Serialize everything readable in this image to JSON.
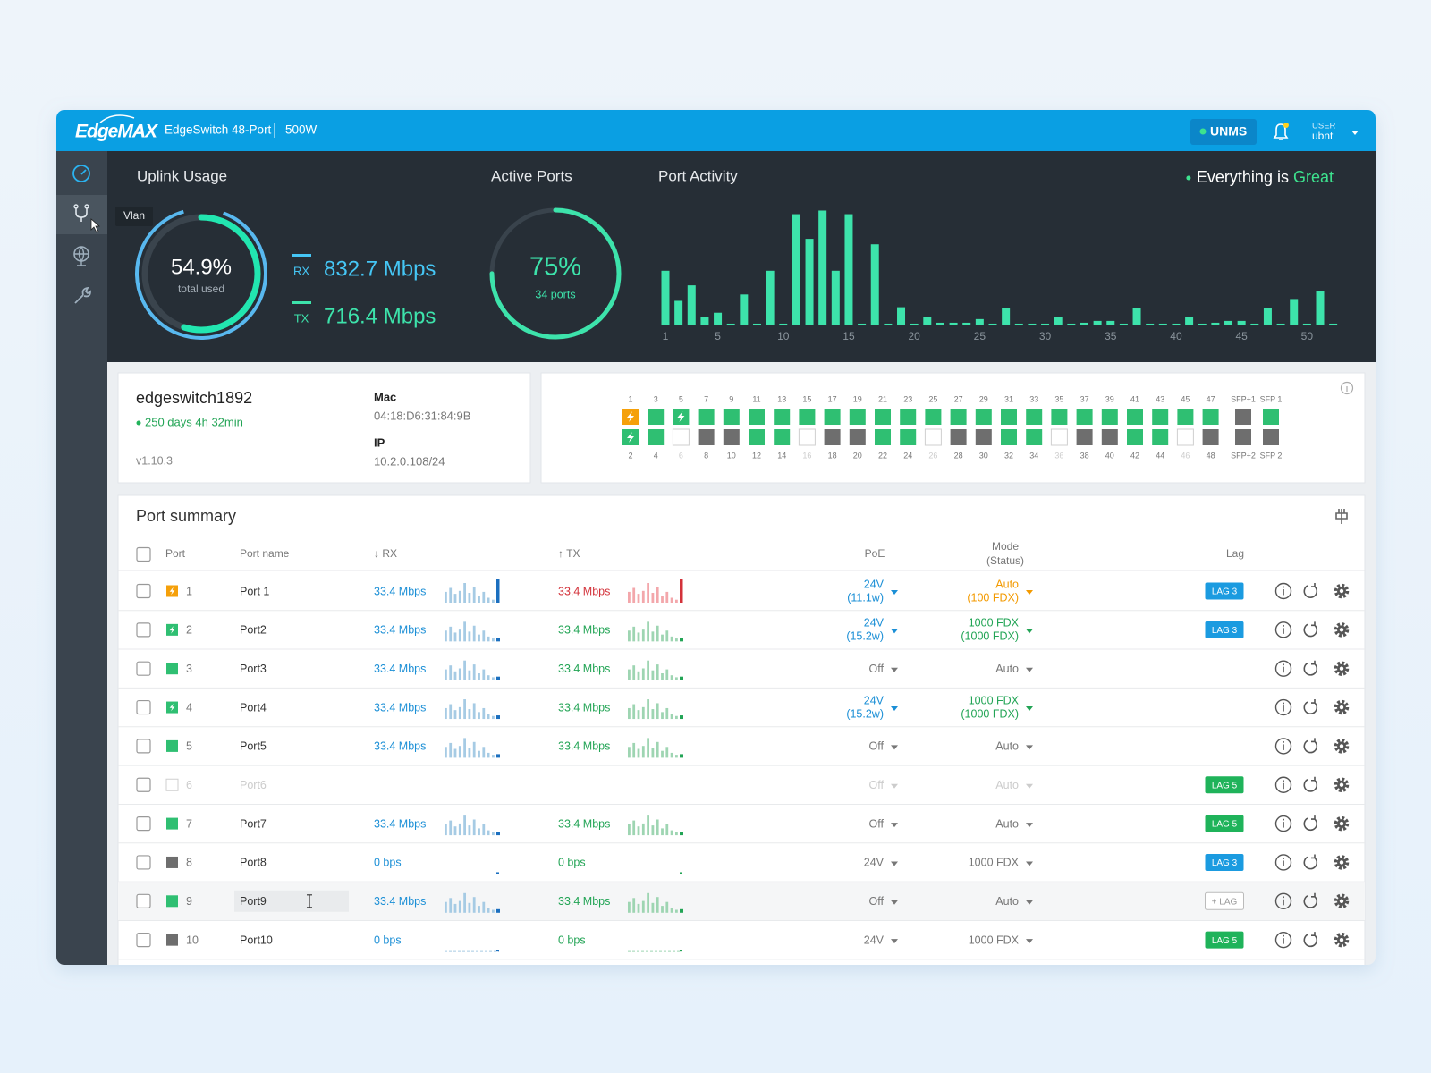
{
  "header": {
    "brand": "EdgeMAX",
    "device": "EdgeSwitch 48-Port",
    "power": "500W",
    "unms": "UNMS",
    "user_label": "USER",
    "user": "ubnt"
  },
  "sidebar": {
    "tooltip": "Vlan"
  },
  "uplink": {
    "title": "Uplink Usage",
    "percent": {
      "value": 54.9,
      "label": "54.9%"
    },
    "percent_label": "total used",
    "rx_label": "RX",
    "rx": "832.7 Mbps",
    "tx_label": "TX",
    "tx": "716.4 Mbps"
  },
  "active_ports": {
    "title": "Active Ports",
    "percent": {
      "value": 75,
      "label": "75%"
    },
    "ports": "34 ports"
  },
  "port_activity": {
    "title": "Port Activity",
    "color": "#3de3ab",
    "ylim": [
      0,
      130
    ],
    "values": [
      60,
      27,
      44,
      9,
      14,
      2,
      34,
      2,
      60,
      2,
      122,
      95,
      126,
      60,
      122,
      2,
      89,
      2,
      20,
      2,
      9,
      3,
      3,
      3,
      7,
      2,
      19,
      2,
      2,
      2,
      9,
      2,
      3,
      5,
      5,
      2,
      19,
      2,
      2,
      2,
      9,
      2,
      3,
      5,
      5,
      2,
      19,
      2,
      29,
      2,
      38,
      2
    ],
    "xticks": [
      1,
      5,
      10,
      15,
      20,
      25,
      30,
      35,
      40,
      45,
      50
    ]
  },
  "status": {
    "prefix": "Everything is",
    "word": "Great"
  },
  "device": {
    "name": "edgeswitch1892",
    "uptime": "250 days 4h 32min",
    "version": "v1.10.3",
    "mac_label": "Mac",
    "mac": "04:18:D6:31:84:9B",
    "ip_label": "IP",
    "ip": "10.2.0.108/24"
  },
  "port_map": {
    "top_labels": [
      "1",
      "3",
      "5",
      "7",
      "9",
      "11",
      "13",
      "15",
      "17",
      "19",
      "21",
      "23",
      "25",
      "27",
      "29",
      "31",
      "33",
      "35",
      "37",
      "39",
      "41",
      "43",
      "45",
      "47",
      "SFP+1",
      "SFP 1"
    ],
    "top_states": [
      "poe-orange",
      "up",
      "poe",
      "up",
      "up",
      "up",
      "up",
      "up",
      "up",
      "up",
      "up",
      "up",
      "up",
      "up",
      "up",
      "up",
      "up",
      "up",
      "up",
      "up",
      "up",
      "up",
      "up",
      "up",
      "down",
      "up"
    ],
    "bottom_labels": [
      "2",
      "4",
      "6",
      "8",
      "10",
      "12",
      "14",
      "16",
      "18",
      "20",
      "22",
      "24",
      "26",
      "28",
      "30",
      "32",
      "34",
      "36",
      "38",
      "40",
      "42",
      "44",
      "46",
      "48",
      "SFP+2",
      "SFP 2"
    ],
    "bottom_states": [
      "poe",
      "up",
      "empty",
      "down",
      "down",
      "up",
      "up",
      "empty",
      "down",
      "down",
      "up",
      "up",
      "empty",
      "down",
      "down",
      "up",
      "up",
      "empty",
      "down",
      "down",
      "up",
      "up",
      "empty",
      "down",
      "down",
      "down"
    ]
  },
  "port_summary": {
    "title": "Port summary",
    "columns": {
      "port": "Port",
      "name": "Port name",
      "rx": "↓ RX",
      "tx": "↑ TX",
      "poe": "PoE",
      "mode": "Mode",
      "mode_status": "(Status)",
      "lag": "Lag"
    },
    "rows": [
      {
        "port": "1",
        "state": "poe-orange",
        "name": "Port 1",
        "rx": "33.4 Mbps",
        "tx": "33.4 Mbps",
        "tx_color": "#d3323a",
        "spark": "alert",
        "poe": "24V",
        "poe_power": "(11.1w)",
        "poe_color": "#1b8fd6",
        "mode": "Auto",
        "mode_status": "(100 FDX)",
        "mode_color": "#f39a00",
        "lag": "LAG 3",
        "lag_color": "#1b9be0"
      },
      {
        "port": "2",
        "state": "poe",
        "name": "Port2",
        "rx": "33.4 Mbps",
        "tx": "33.4 Mbps",
        "tx_color": "#22a455",
        "spark": "traffic",
        "poe": "24V",
        "poe_power": "(15.2w)",
        "poe_color": "#1b8fd6",
        "mode": "1000 FDX",
        "mode_status": "(1000 FDX)",
        "mode_color": "#22a455",
        "lag": "LAG 3",
        "lag_color": "#1b9be0"
      },
      {
        "port": "3",
        "state": "up",
        "name": "Port3",
        "rx": "33.4 Mbps",
        "tx": "33.4 Mbps",
        "tx_color": "#22a455",
        "spark": "traffic",
        "poe": "Off",
        "poe_color": "#777777",
        "mode": "Auto",
        "mode_color": "#777777"
      },
      {
        "port": "4",
        "state": "poe",
        "name": "Port4",
        "rx": "33.4 Mbps",
        "tx": "33.4 Mbps",
        "tx_color": "#22a455",
        "spark": "traffic",
        "poe": "24V",
        "poe_power": "(15.2w)",
        "poe_color": "#1b8fd6",
        "mode": "1000 FDX",
        "mode_status": "(1000 FDX)",
        "mode_color": "#22a455"
      },
      {
        "port": "5",
        "state": "up",
        "name": "Port5",
        "rx": "33.4 Mbps",
        "tx": "33.4 Mbps",
        "tx_color": "#22a455",
        "spark": "traffic",
        "poe": "Off",
        "poe_color": "#777777",
        "mode": "Auto",
        "mode_color": "#777777"
      },
      {
        "port": "6",
        "state": "empty",
        "name": "Port6",
        "poe": "Off",
        "poe_color": "#cccccc",
        "mode": "Auto",
        "mode_color": "#cccccc",
        "lag": "LAG 5",
        "lag_color": "#1fb35a",
        "faded": true
      },
      {
        "port": "7",
        "state": "up",
        "name": "Port7",
        "rx": "33.4 Mbps",
        "tx": "33.4 Mbps",
        "tx_color": "#22a455",
        "spark": "traffic",
        "poe": "Off",
        "poe_color": "#777777",
        "mode": "Auto",
        "mode_color": "#777777",
        "lag": "LAG 5",
        "lag_color": "#1fb35a"
      },
      {
        "port": "8",
        "state": "down",
        "name": "Port8",
        "rx": "0 bps",
        "tx": "0 bps",
        "tx_color": "#22a455",
        "spark": "idle",
        "poe": "24V",
        "poe_color": "#777777",
        "mode": "1000 FDX",
        "mode_color": "#777777",
        "lag": "LAG 3",
        "lag_color": "#1b9be0"
      },
      {
        "port": "9",
        "state": "up",
        "name": "Port9",
        "rx": "33.4 Mbps",
        "tx": "33.4 Mbps",
        "tx_color": "#22a455",
        "spark": "traffic",
        "poe": "Off",
        "poe_color": "#777777",
        "mode": "Auto",
        "mode_color": "#777777",
        "lag": "+ LAG",
        "lag_color": "#bbbbbb",
        "lag_outline": true,
        "highlighted": true
      },
      {
        "port": "10",
        "state": "down",
        "name": "Port10",
        "rx": "0 bps",
        "tx": "0 bps",
        "tx_color": "#22a455",
        "spark": "idle",
        "poe": "24V",
        "poe_color": "#777777",
        "mode": "1000 FDX",
        "mode_color": "#777777",
        "lag": "LAG 5",
        "lag_color": "#1fb35a"
      }
    ]
  }
}
